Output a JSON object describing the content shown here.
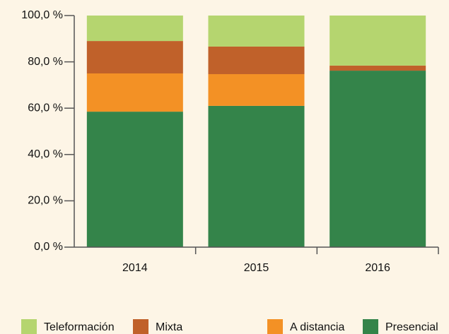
{
  "chart_data": {
    "type": "stacked-bar",
    "categories": [
      "2014",
      "2015",
      "2016"
    ],
    "series": [
      {
        "name": "Presencial",
        "color": "#34844a",
        "values": [
          58.5,
          61.0,
          76.2
        ]
      },
      {
        "name": "A distancia",
        "color": "#f39125",
        "values": [
          16.5,
          13.7,
          0
        ]
      },
      {
        "name": "Mixta",
        "color": "#c0612a",
        "values": [
          14.0,
          11.9,
          2.2
        ]
      },
      {
        "name": "Teleformación",
        "color": "#b5d56f",
        "values": [
          11.0,
          13.4,
          21.6
        ]
      }
    ],
    "ylim": [
      0,
      100
    ],
    "yticks": [
      {
        "value": 0,
        "label": "0,0 %"
      },
      {
        "value": 20,
        "label": "20,0 %"
      },
      {
        "value": 40,
        "label": "40,0 %"
      },
      {
        "value": 60,
        "label": "60,0 %"
      },
      {
        "value": 80,
        "label": "80,0 %"
      },
      {
        "value": 100,
        "label": "100,0 %"
      }
    ]
  }
}
